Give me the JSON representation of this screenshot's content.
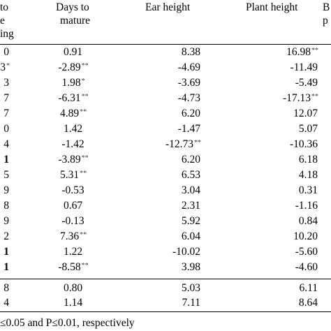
{
  "header": {
    "col0": [
      "to",
      "e",
      "ing"
    ],
    "col1": [
      "Days to",
      "mature"
    ],
    "col2": "Ear height",
    "col3": "Plant height",
    "col4": [
      "B",
      "p"
    ]
  },
  "rows": [
    {
      "c0": "0",
      "c0_bold": false,
      "c1": "0.91",
      "c1_sig": "",
      "c2": "8.38",
      "c2_sig": "",
      "c3": "16.98",
      "c3_sig": "**"
    },
    {
      "c0": "3",
      "c0_bold": false,
      "c0_sig": "*",
      "c1": "-2.89",
      "c1_sig": "**",
      "c2": "-4.69",
      "c2_sig": "",
      "c3": "-11.49",
      "c3_sig": ""
    },
    {
      "c0": "3",
      "c0_bold": false,
      "c1": "1.98",
      "c1_sig": "*",
      "c2": "-3.69",
      "c2_sig": "",
      "c3": "-5.49",
      "c3_sig": ""
    },
    {
      "c0": "7",
      "c0_bold": false,
      "c1": "-6.31",
      "c1_sig": "**",
      "c2": "-4.73",
      "c2_sig": "",
      "c3": "-17.13",
      "c3_sig": "**"
    },
    {
      "c0": "7",
      "c0_bold": false,
      "c1": "4.89",
      "c1_sig": "**",
      "c2": "6.20",
      "c2_sig": "",
      "c3": "12.07",
      "c3_sig": ""
    },
    {
      "c0": "0",
      "c0_bold": false,
      "c1": "1.42",
      "c1_sig": "",
      "c2": "-1.47",
      "c2_sig": "",
      "c3": "5.07",
      "c3_sig": ""
    },
    {
      "c0": "4",
      "c0_bold": false,
      "c1": "-1.42",
      "c1_sig": "",
      "c2": "-12.73",
      "c2_sig": "**",
      "c3": "-10.36",
      "c3_sig": ""
    },
    {
      "c0": "1",
      "c0_bold": true,
      "c1": "-3.89",
      "c1_sig": "**",
      "c2": "6.20",
      "c2_sig": "",
      "c3": "6.18",
      "c3_sig": ""
    },
    {
      "c0": "5",
      "c0_bold": false,
      "c1": "5.31",
      "c1_sig": "**",
      "c2": "6.53",
      "c2_sig": "",
      "c3": "4.18",
      "c3_sig": ""
    },
    {
      "c0": "9",
      "c0_bold": false,
      "c1": "-0.53",
      "c1_sig": "",
      "c2": "3.04",
      "c2_sig": "",
      "c3": "0.31",
      "c3_sig": ""
    },
    {
      "c0": "8",
      "c0_bold": false,
      "c1": "0.67",
      "c1_sig": "",
      "c2": "2.31",
      "c2_sig": "",
      "c3": "-1.16",
      "c3_sig": ""
    },
    {
      "c0": "9",
      "c0_bold": false,
      "c1": "-0.13",
      "c1_sig": "",
      "c2": "5.92",
      "c2_sig": "",
      "c3": "0.84",
      "c3_sig": ""
    },
    {
      "c0": "2",
      "c0_bold": false,
      "c1": "7.36",
      "c1_sig": "**",
      "c2": "6.04",
      "c2_sig": "",
      "c3": "10.20",
      "c3_sig": ""
    },
    {
      "c0": "1",
      "c0_bold": true,
      "c1": "1.22",
      "c1_sig": "",
      "c2": "-10.02",
      "c2_sig": "",
      "c3": "-5.60",
      "c3_sig": ""
    },
    {
      "c0": "1",
      "c0_bold": true,
      "c1": "-8.58",
      "c1_sig": "**",
      "c2": "3.98",
      "c2_sig": "",
      "c3": "-4.60",
      "c3_sig": ""
    }
  ],
  "summary": [
    {
      "c0": "8",
      "c1": "0.80",
      "c2": "5.03",
      "c3": "6.11"
    },
    {
      "c0": "4",
      "c1": "1.14",
      "c2": "7.11",
      "c3": "8.64"
    }
  ],
  "footnote": "≤0.05 and P≤0.01, respectively"
}
